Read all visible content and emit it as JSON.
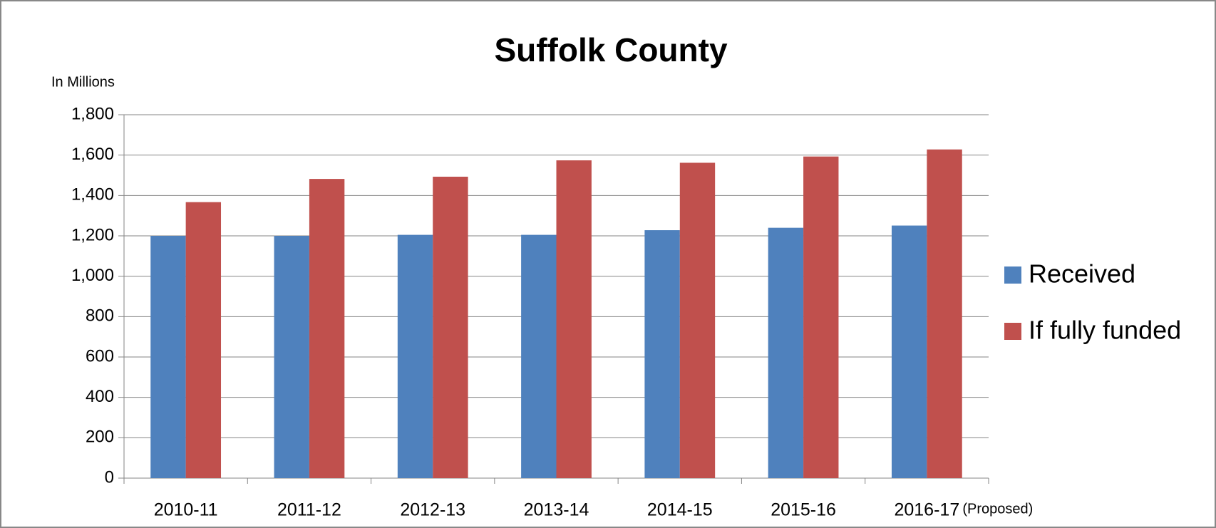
{
  "chart_data": {
    "type": "bar",
    "title": "Suffolk County",
    "y_label": "In Millions",
    "annotation": "(Proposed)",
    "categories": [
      "2010-11",
      "2011-12",
      "2012-13",
      "2013-14",
      "2014-15",
      "2015-16",
      "2016-17"
    ],
    "series": [
      {
        "name": "Received",
        "color": "#4f81bd",
        "values": [
          1200,
          1200,
          1205,
          1205,
          1228,
          1240,
          1251
        ]
      },
      {
        "name": "If fully funded",
        "color": "#c0504d",
        "values": [
          1367,
          1482,
          1493,
          1574,
          1562,
          1593,
          1628
        ]
      }
    ],
    "ylim": [
      0,
      1800
    ],
    "yticks": [
      0,
      200,
      400,
      600,
      800,
      {
        "value": 1000,
        "label": "1,000"
      },
      {
        "value": 1200,
        "label": "1,200"
      },
      {
        "value": 1400,
        "label": "1,400"
      },
      {
        "value": 1600,
        "label": "1,600"
      },
      {
        "value": 1800,
        "label": "1,800"
      }
    ],
    "grid": true,
    "legend": "right"
  }
}
